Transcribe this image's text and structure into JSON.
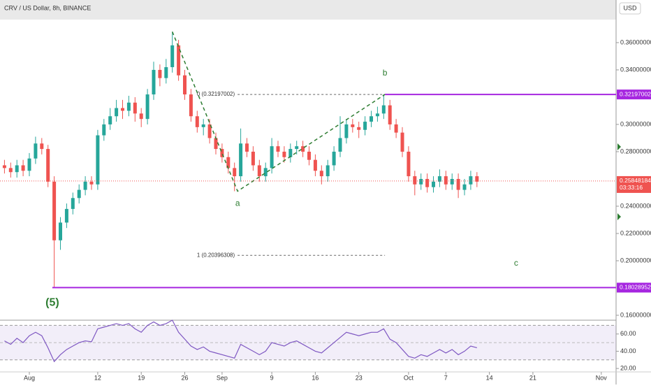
{
  "header": {
    "title": "CRV / US Dollar, 8h, BINANCE",
    "currency": "USD"
  },
  "chart_data": [
    {
      "type": "candlestick",
      "x": [
        -4,
        -3,
        -2,
        -1,
        0,
        1,
        2,
        3,
        4,
        5,
        6,
        7,
        8,
        9,
        10,
        11,
        12,
        13,
        14,
        15,
        16,
        17,
        18,
        19,
        20,
        21,
        22,
        23,
        24,
        25,
        26,
        27,
        28,
        29,
        30,
        31,
        32,
        33,
        34,
        35,
        36,
        37,
        38,
        39,
        40,
        41,
        42,
        43,
        44,
        45,
        46,
        47,
        48,
        49,
        50,
        51,
        52,
        53,
        54,
        55,
        56,
        57,
        58,
        59,
        60,
        61,
        62,
        63,
        64,
        65,
        66,
        67,
        68,
        69,
        70,
        71,
        72
      ],
      "open": [
        0.27,
        0.268,
        0.265,
        0.27,
        0.266,
        0.275,
        0.286,
        0.282,
        0.258,
        0.215,
        0.228,
        0.238,
        0.246,
        0.252,
        0.258,
        0.256,
        0.292,
        0.3,
        0.306,
        0.312,
        0.31,
        0.316,
        0.308,
        0.304,
        0.322,
        0.34,
        0.334,
        0.342,
        0.358,
        0.336,
        0.322,
        0.306,
        0.298,
        0.3,
        0.29,
        0.282,
        0.276,
        0.268,
        0.262,
        0.286,
        0.28,
        0.27,
        0.262,
        0.268,
        0.284,
        0.28,
        0.276,
        0.282,
        0.284,
        0.28,
        0.274,
        0.266,
        0.262,
        0.27,
        0.28,
        0.29,
        0.3,
        0.298,
        0.296,
        0.302,
        0.306,
        0.308,
        0.314,
        0.3,
        0.294,
        0.28,
        0.262,
        0.256,
        0.26,
        0.254,
        0.258,
        0.262,
        0.256,
        0.26,
        0.252,
        0.256,
        0.262
      ],
      "high": [
        0.274,
        0.272,
        0.274,
        0.274,
        0.279,
        0.291,
        0.29,
        0.285,
        0.262,
        0.232,
        0.242,
        0.25,
        0.256,
        0.262,
        0.262,
        0.296,
        0.304,
        0.312,
        0.318,
        0.318,
        0.321,
        0.32,
        0.312,
        0.326,
        0.346,
        0.344,
        0.348,
        0.368,
        0.362,
        0.34,
        0.326,
        0.31,
        0.304,
        0.304,
        0.294,
        0.286,
        0.28,
        0.272,
        0.297,
        0.29,
        0.284,
        0.274,
        0.272,
        0.29,
        0.288,
        0.284,
        0.286,
        0.288,
        0.288,
        0.284,
        0.278,
        0.27,
        0.274,
        0.284,
        0.306,
        0.304,
        0.304,
        0.302,
        0.306,
        0.31,
        0.313,
        0.322,
        0.318,
        0.304,
        0.298,
        0.284,
        0.266,
        0.264,
        0.264,
        0.262,
        0.267,
        0.266,
        0.264,
        0.264,
        0.26,
        0.266,
        0.265
      ],
      "low": [
        0.264,
        0.261,
        0.261,
        0.262,
        0.262,
        0.271,
        0.278,
        0.254,
        0.1803,
        0.208,
        0.224,
        0.234,
        0.242,
        0.248,
        0.252,
        0.252,
        0.288,
        0.296,
        0.302,
        0.304,
        0.306,
        0.302,
        0.298,
        0.3,
        0.318,
        0.328,
        0.33,
        0.338,
        0.332,
        0.318,
        0.302,
        0.294,
        0.292,
        0.286,
        0.278,
        0.272,
        0.264,
        0.251,
        0.258,
        0.276,
        0.266,
        0.258,
        0.258,
        0.264,
        0.276,
        0.272,
        0.272,
        0.278,
        0.276,
        0.27,
        0.262,
        0.256,
        0.258,
        0.266,
        0.276,
        0.286,
        0.294,
        0.29,
        0.292,
        0.298,
        0.302,
        0.304,
        0.296,
        0.29,
        0.276,
        0.258,
        0.248,
        0.252,
        0.25,
        0.25,
        0.254,
        0.252,
        0.252,
        0.246,
        0.248,
        0.252,
        0.254
      ],
      "close": [
        0.268,
        0.265,
        0.27,
        0.266,
        0.275,
        0.286,
        0.282,
        0.258,
        0.215,
        0.228,
        0.238,
        0.246,
        0.252,
        0.258,
        0.256,
        0.292,
        0.3,
        0.306,
        0.312,
        0.31,
        0.316,
        0.308,
        0.304,
        0.322,
        0.34,
        0.334,
        0.342,
        0.358,
        0.336,
        0.322,
        0.306,
        0.298,
        0.3,
        0.29,
        0.282,
        0.276,
        0.268,
        0.262,
        0.286,
        0.28,
        0.27,
        0.262,
        0.268,
        0.284,
        0.28,
        0.276,
        0.282,
        0.284,
        0.28,
        0.274,
        0.266,
        0.262,
        0.27,
        0.28,
        0.29,
        0.3,
        0.298,
        0.296,
        0.302,
        0.306,
        0.308,
        0.314,
        0.3,
        0.294,
        0.28,
        0.262,
        0.256,
        0.26,
        0.254,
        0.258,
        0.262,
        0.256,
        0.26,
        0.252,
        0.256,
        0.262,
        0.258
      ],
      "up_color": "#26a69a",
      "down_color": "#ef5350",
      "xlim": [
        -4.72,
        94.38
      ],
      "ylim": [
        0.1564,
        0.3769
      ],
      "xticks": [
        {
          "value": 0,
          "label": "Aug"
        },
        {
          "value": 11,
          "label": "12"
        },
        {
          "value": 18,
          "label": "19"
        },
        {
          "value": 25,
          "label": "26"
        },
        {
          "value": 31,
          "label": "Sep"
        },
        {
          "value": 39,
          "label": "9"
        },
        {
          "value": 46,
          "label": "16"
        },
        {
          "value": 53,
          "label": "23"
        },
        {
          "value": 61,
          "label": "Oct"
        },
        {
          "value": 67,
          "label": "7"
        },
        {
          "value": 74,
          "label": "14"
        },
        {
          "value": 81,
          "label": "21"
        },
        {
          "value": 92,
          "label": "Nov"
        }
      ],
      "yticks": [
        {
          "value": 0.36,
          "label": "0.36000000"
        },
        {
          "value": 0.34,
          "label": "0.34000000"
        },
        {
          "value": 0.3,
          "label": "0.30000000"
        },
        {
          "value": 0.28,
          "label": "0.28000000"
        },
        {
          "value": 0.24,
          "label": "0.24000000"
        },
        {
          "value": 0.22,
          "label": "0.22000000"
        },
        {
          "value": 0.2,
          "label": "0.20000000"
        },
        {
          "value": 0.16,
          "label": "0.16000000"
        }
      ],
      "last_price": 0.25848184,
      "countdown": "03:33:16",
      "levels": [
        0.32197002,
        0.18028952
      ],
      "level_color": "#a626e0",
      "fib": [
        {
          "value": 0.32197002,
          "label": "0 (0.32197002)"
        },
        {
          "value": 0.20396308,
          "label": "1 (0.20396308)"
        }
      ],
      "waves": [
        {
          "label": "(5)",
          "x": 3.7,
          "y": 0.18028952
        },
        {
          "label": null,
          "x": 23,
          "y": 0.368
        },
        {
          "label": "a",
          "x": 33.5,
          "y": 0.251
        },
        {
          "label": "b",
          "x": 57.2,
          "y": 0.322
        },
        {
          "label": "c",
          "x": 78.3,
          "y": 0.198
        }
      ],
      "wave_color": "#2e7d32"
    },
    {
      "type": "line",
      "x": [
        -4,
        -3,
        -2,
        -1,
        0,
        1,
        2,
        3,
        4,
        5,
        6,
        7,
        8,
        9,
        10,
        11,
        12,
        13,
        14,
        15,
        16,
        17,
        18,
        19,
        20,
        21,
        22,
        23,
        24,
        25,
        26,
        27,
        28,
        29,
        30,
        31,
        32,
        33,
        34,
        35,
        36,
        37,
        38,
        39,
        40,
        41,
        42,
        43,
        44,
        45,
        46,
        47,
        48,
        49,
        50,
        51,
        52,
        53,
        54,
        55,
        56,
        57,
        58,
        59,
        60,
        61,
        62,
        63,
        64,
        65,
        66,
        67,
        68,
        69,
        70,
        71,
        72
      ],
      "values": [
        52,
        48,
        55,
        50,
        58,
        62,
        58,
        44,
        28,
        36,
        42,
        46,
        50,
        52,
        51,
        66,
        68,
        70,
        72,
        70,
        72,
        66,
        62,
        70,
        74,
        70,
        72,
        76,
        62,
        54,
        46,
        42,
        45,
        40,
        38,
        36,
        34,
        32,
        48,
        44,
        40,
        36,
        40,
        50,
        48,
        46,
        50,
        52,
        48,
        44,
        40,
        38,
        44,
        50,
        56,
        62,
        60,
        58,
        60,
        62,
        62,
        66,
        54,
        50,
        42,
        34,
        32,
        36,
        34,
        38,
        42,
        38,
        42,
        36,
        40,
        46,
        44
      ],
      "color": "#7e57c2",
      "xlim": [
        -4.72,
        94.38
      ],
      "ylim": [
        16,
        74.4
      ],
      "yticks": [
        {
          "value": 60,
          "label": "60.00"
        },
        {
          "value": 40,
          "label": "40.00"
        },
        {
          "value": 20,
          "label": "20.00"
        }
      ],
      "bands": [
        30,
        70
      ],
      "midline": 50
    }
  ]
}
